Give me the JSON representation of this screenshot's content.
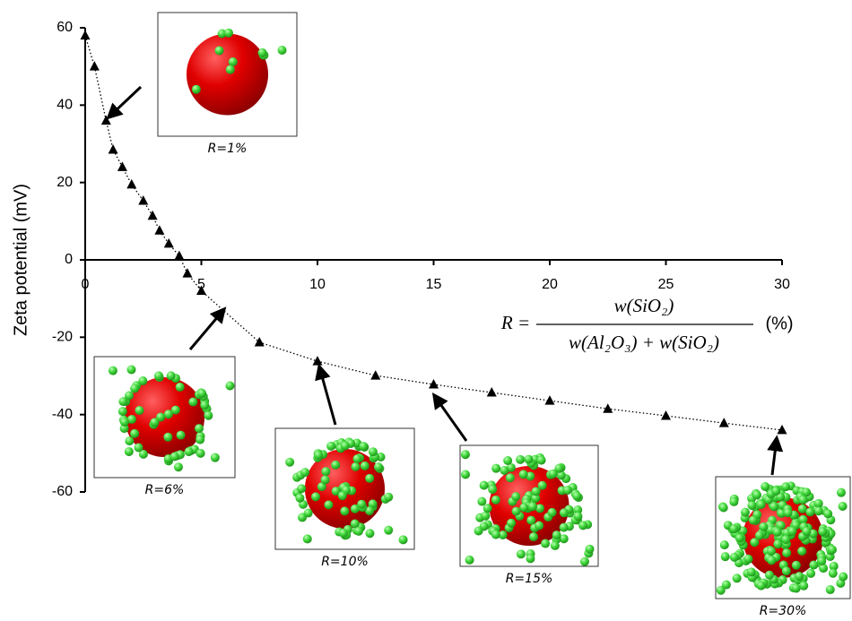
{
  "chart_data": {
    "type": "line",
    "y_label": "Zeta potential (mV)",
    "x": [
      0,
      0.4,
      0.9,
      1.2,
      1.6,
      2.0,
      2.5,
      2.9,
      3.2,
      3.6,
      4.05,
      4.4,
      5,
      7.5,
      10,
      12.5,
      15,
      17.5,
      20,
      22.5,
      25,
      27.5,
      30
    ],
    "series": [
      {
        "name": "Zeta potential",
        "color": "#000000",
        "values": [
          58,
          50,
          36,
          28.5,
          24,
          19.5,
          15.3,
          11.4,
          7.6,
          4.2,
          1,
          -3.5,
          -8,
          -21.3,
          -26.2,
          -29.9,
          -32.2,
          -34.3,
          -36.4,
          -38.5,
          -40.3,
          -42.2,
          -44
        ]
      }
    ],
    "xlim": [
      0,
      30
    ],
    "xticks": [
      0,
      5,
      10,
      15,
      20,
      25,
      30
    ],
    "ylim": [
      -60,
      60
    ],
    "yticks": [
      -60,
      -40,
      -20,
      0,
      20,
      40,
      60
    ],
    "formula": {
      "lhs": "R =",
      "numerator": "w(SiO₂)",
      "denominator": "w(Al₂O₃) + w(SiO₂)",
      "unit": "(%)"
    },
    "insets": [
      {
        "label": "R=1%"
      },
      {
        "label": "R=6%"
      },
      {
        "label": "R=10%"
      },
      {
        "label": "R=15%"
      },
      {
        "label": "R=30%"
      }
    ]
  }
}
